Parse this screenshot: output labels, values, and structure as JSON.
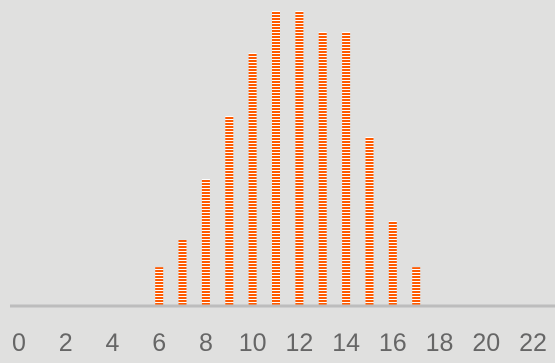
{
  "chart_data": {
    "type": "bar",
    "x": [
      6,
      7,
      8,
      9,
      10,
      11,
      12,
      13,
      14,
      15,
      16,
      17
    ],
    "values": [
      18,
      31,
      60,
      90,
      120,
      140,
      140,
      130,
      130,
      80,
      40,
      18
    ],
    "x_ticks": [
      0,
      2,
      4,
      6,
      8,
      10,
      12,
      14,
      16,
      18,
      20,
      22
    ],
    "x_tick_labels": [
      "0",
      "2",
      "4",
      "6",
      "8",
      "10",
      "12",
      "14",
      "16",
      "18",
      "20",
      "22"
    ],
    "xlim": [
      0,
      22
    ],
    "ylim": [
      0,
      140
    ],
    "grid": false,
    "legend": "none",
    "title": "",
    "xlabel": "",
    "ylabel": "",
    "colors": {
      "bar": "#ff5a00",
      "bar_stripe": "#ffffff",
      "axis": "#bdbdbd",
      "tick_label": "#666666",
      "background": "#e0e0df"
    }
  }
}
